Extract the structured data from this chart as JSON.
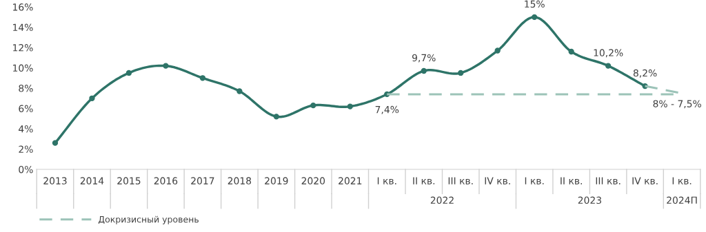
{
  "chart_data": {
    "type": "line",
    "categories": [
      "2013",
      "2014",
      "2015",
      "2016",
      "2017",
      "2018",
      "2019",
      "2020",
      "2021",
      "I кв.",
      "II кв.",
      "III кв.",
      "IV кв.",
      "I кв.",
      "II кв.",
      "III кв.",
      "IV кв.",
      "I кв."
    ],
    "series": [
      {
        "color": "#2e7468",
        "values": [
          2.6,
          7.0,
          9.5,
          10.2,
          9.0,
          7.7,
          5.2,
          6.3,
          6.2,
          7.4,
          9.7,
          9.5,
          11.7,
          15,
          11.6,
          10.2,
          8.2,
          null
        ],
        "value_labels": [
          null,
          null,
          null,
          null,
          null,
          null,
          null,
          null,
          null,
          "7,4%",
          "9,7%",
          null,
          null,
          "15%",
          null,
          "10,2%",
          "8,2%",
          null
        ],
        "line_style": "solid",
        "marker": "circle"
      },
      {
        "color": "#9cc3b8",
        "values": [
          null,
          null,
          null,
          null,
          null,
          null,
          null,
          null,
          null,
          null,
          null,
          null,
          null,
          null,
          null,
          null,
          8.2,
          7.5
        ],
        "value_labels": [
          null,
          null,
          null,
          null,
          null,
          null,
          null,
          null,
          null,
          null,
          null,
          null,
          null,
          null,
          null,
          null,
          null,
          "8% - 7,5%"
        ],
        "line_style": "dashed",
        "marker": "none"
      },
      {
        "name": "Докризисный уровень",
        "color": "#9cc3b8",
        "values": [
          null,
          null,
          null,
          null,
          null,
          null,
          null,
          null,
          null,
          7.4,
          7.4,
          7.4,
          7.4,
          7.4,
          7.4,
          7.4,
          7.4,
          7.4
        ],
        "line_style": "dashed",
        "marker": "none"
      }
    ],
    "ylim": [
      0,
      16
    ],
    "yticks": [
      {
        "value": 0,
        "label": "0%"
      },
      {
        "value": 2,
        "label": "2%"
      },
      {
        "value": 4,
        "label": "4%"
      },
      {
        "value": 6,
        "label": "6%"
      },
      {
        "value": 8,
        "label": "8%"
      },
      {
        "value": 10,
        "label": "10%"
      },
      {
        "value": 12,
        "label": "12%"
      },
      {
        "value": 14,
        "label": "14%"
      },
      {
        "value": 16,
        "label": "16%"
      }
    ],
    "annotations": [
      "2022",
      "2023",
      "2024П"
    ],
    "grid": false,
    "legend": "bottom left"
  }
}
